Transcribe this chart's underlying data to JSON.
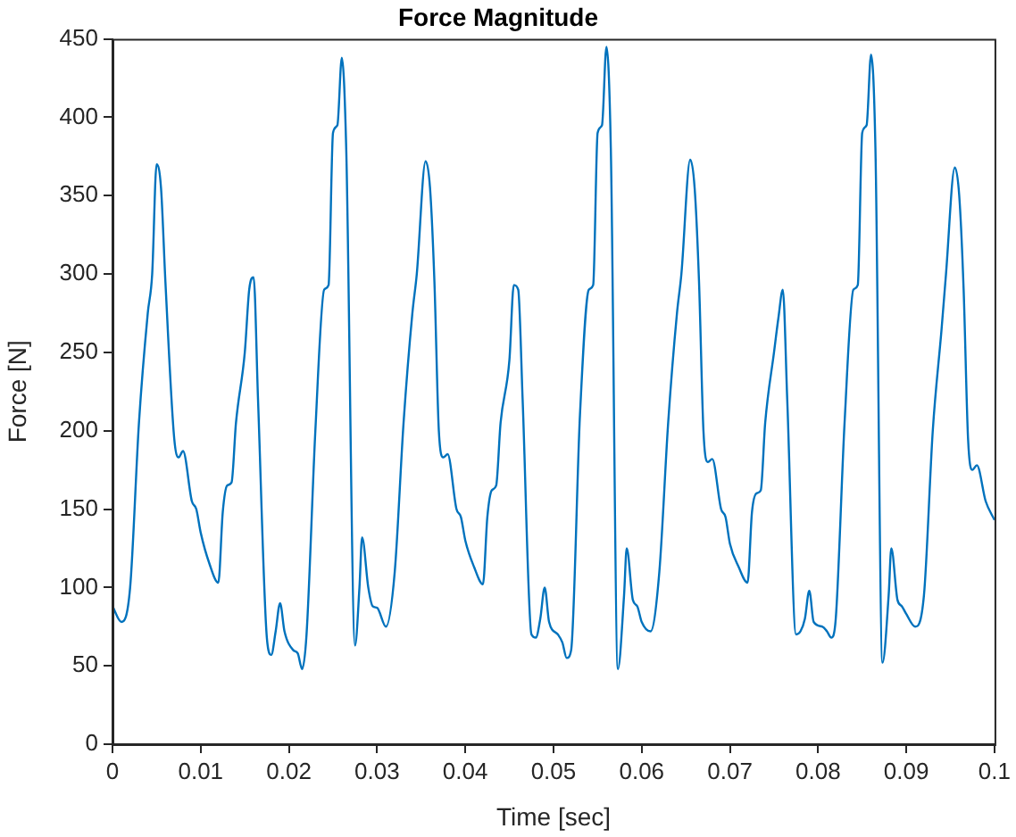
{
  "chart_data": {
    "type": "line",
    "title": "Force Magnitude",
    "xlabel": "Time [sec]",
    "ylabel": "Force [N]",
    "xlim": [
      0,
      0.1
    ],
    "xticks": [
      0,
      0.01,
      0.02,
      0.03,
      0.04,
      0.05,
      0.06,
      0.07,
      0.08,
      0.09,
      0.1
    ],
    "ylim": [
      0,
      450
    ],
    "yticks": [
      0,
      50,
      100,
      150,
      200,
      250,
      300,
      350,
      400,
      450
    ],
    "grid": false,
    "legend": false,
    "marker": "none",
    "line_style": "solid",
    "series": [
      {
        "color": "#0072bd",
        "x": [
          0,
          0.001,
          0.002,
          0.003,
          0.004,
          0.0045,
          0.005,
          0.0055,
          0.006,
          0.007,
          0.0075,
          0.008,
          0.009,
          0.0095,
          0.01,
          0.011,
          0.012,
          0.0125,
          0.013,
          0.0135,
          0.014,
          0.015,
          0.0155,
          0.016,
          0.0165,
          0.0175,
          0.018,
          0.0185,
          0.019,
          0.0195,
          0.0205,
          0.021,
          0.0215,
          0.022,
          0.023,
          0.024,
          0.0245,
          0.025,
          0.0255,
          0.026,
          0.0265,
          0.0275,
          0.028,
          0.0283,
          0.029,
          0.0295,
          0.03,
          0.031,
          0.032,
          0.033,
          0.034,
          0.0345,
          0.0355,
          0.036,
          0.0365,
          0.037,
          0.0375,
          0.038,
          0.039,
          0.0395,
          0.04,
          0.041,
          0.042,
          0.0425,
          0.043,
          0.0435,
          0.044,
          0.045,
          0.0455,
          0.046,
          0.0465,
          0.0475,
          0.048,
          0.0485,
          0.049,
          0.0495,
          0.0505,
          0.051,
          0.0515,
          0.052,
          0.053,
          0.054,
          0.0545,
          0.055,
          0.0555,
          0.056,
          0.0565,
          0.0573,
          0.058,
          0.0583,
          0.059,
          0.0595,
          0.06,
          0.061,
          0.062,
          0.063,
          0.064,
          0.0645,
          0.0655,
          0.066,
          0.0665,
          0.067,
          0.0675,
          0.068,
          0.069,
          0.0695,
          0.07,
          0.071,
          0.072,
          0.0725,
          0.073,
          0.0735,
          0.074,
          0.075,
          0.0755,
          0.076,
          0.0765,
          0.0775,
          0.078,
          0.0785,
          0.079,
          0.0795,
          0.0805,
          0.081,
          0.0815,
          0.082,
          0.083,
          0.084,
          0.0845,
          0.085,
          0.0855,
          0.086,
          0.0865,
          0.0873,
          0.088,
          0.0883,
          0.089,
          0.0895,
          0.09,
          0.091,
          0.092,
          0.093,
          0.094,
          0.0945,
          0.0955,
          0.096,
          0.0965,
          0.097,
          0.0975,
          0.098,
          0.099,
          0.1
        ],
        "values": [
          88,
          78,
          100,
          205,
          275,
          300,
          370,
          355,
          295,
          195,
          183,
          187,
          155,
          150,
          135,
          115,
          103,
          148,
          165,
          167,
          205,
          250,
          290,
          298,
          220,
          68,
          57,
          72,
          90,
          72,
          60,
          58,
          48,
          70,
          200,
          290,
          293,
          390,
          395,
          438,
          380,
          63,
          100,
          132,
          100,
          88,
          87,
          75,
          110,
          205,
          275,
          300,
          372,
          355,
          295,
          200,
          183,
          185,
          150,
          145,
          130,
          113,
          102,
          145,
          162,
          165,
          205,
          245,
          293,
          290,
          220,
          70,
          68,
          80,
          100,
          78,
          70,
          65,
          55,
          60,
          210,
          290,
          293,
          390,
          395,
          445,
          380,
          48,
          95,
          125,
          92,
          88,
          78,
          72,
          110,
          205,
          275,
          300,
          373,
          355,
          295,
          200,
          180,
          182,
          150,
          145,
          128,
          113,
          103,
          148,
          160,
          162,
          205,
          250,
          272,
          290,
          220,
          70,
          72,
          80,
          98,
          78,
          75,
          72,
          68,
          80,
          205,
          290,
          293,
          390,
          395,
          440,
          380,
          52,
          95,
          125,
          92,
          88,
          83,
          75,
          95,
          200,
          265,
          300,
          368,
          350,
          290,
          195,
          175,
          178,
          155,
          143
        ]
      }
    ]
  }
}
